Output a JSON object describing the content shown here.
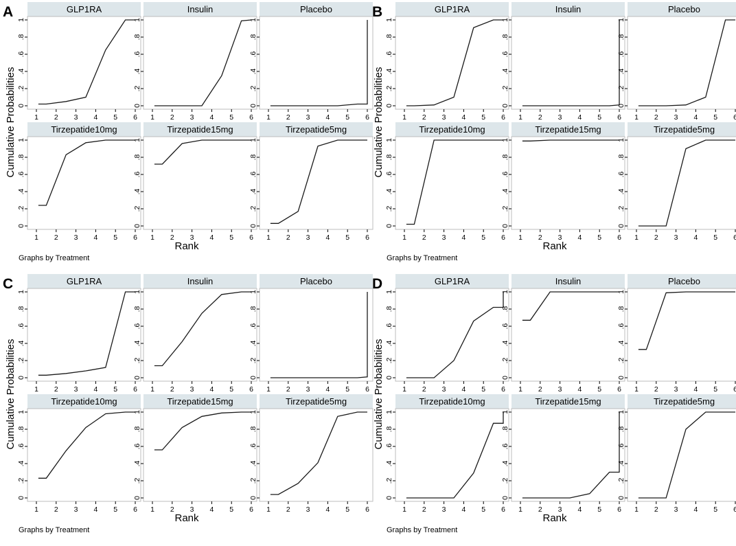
{
  "figure": {
    "x_axis_title": "Rank",
    "y_axis_title": "Cumulative Probabilities",
    "by_note": "Graphs by Treatment"
  },
  "chart_data": [
    {
      "label": "A",
      "type": "line",
      "xlabel": "Rank",
      "ylabel": "Cumulative Probabilities",
      "xlim": [
        1,
        6
      ],
      "ylim": [
        0,
        1
      ],
      "x_ticks": [
        "1",
        "2",
        "3",
        "4",
        "5",
        "6"
      ],
      "y_ticks": [
        "0",
        ".2",
        ".4",
        ".6",
        ".8",
        "1"
      ],
      "note": "Graphs by Treatment",
      "panels": [
        {
          "title": "GLP1RA",
          "x": [
            1.1,
            1.5,
            2.5,
            3.5,
            4.5,
            5.5,
            6
          ],
          "y": [
            0.02,
            0.02,
            0.05,
            0.1,
            0.65,
            1,
            1
          ]
        },
        {
          "title": "Insulin",
          "x": [
            1.1,
            1.5,
            2.5,
            3.5,
            4.5,
            5.5,
            6
          ],
          "y": [
            0,
            0,
            0,
            0,
            0.35,
            0.99,
            1
          ]
        },
        {
          "title": "Placebo",
          "x": [
            1.1,
            1.5,
            2.5,
            3.5,
            4.5,
            5.5,
            6,
            6
          ],
          "y": [
            0,
            0,
            0,
            0,
            0,
            0.02,
            0.02,
            1
          ]
        },
        {
          "title": "Tirzepatide10mg",
          "x": [
            1.1,
            1.5,
            2.5,
            3.5,
            4.5,
            5.5,
            6
          ],
          "y": [
            0.24,
            0.24,
            0.83,
            0.97,
            1,
            1,
            1
          ]
        },
        {
          "title": "Tirzepatide15mg",
          "x": [
            1.1,
            1.5,
            2.5,
            3.5,
            4.5,
            5.5,
            6
          ],
          "y": [
            0.72,
            0.72,
            0.96,
            1,
            1,
            1,
            1
          ]
        },
        {
          "title": "Tirzepatide5mg",
          "x": [
            1.1,
            1.5,
            2.5,
            3.5,
            4.5,
            5.5,
            6
          ],
          "y": [
            0.03,
            0.03,
            0.17,
            0.93,
            1,
            1,
            1
          ]
        }
      ]
    },
    {
      "label": "B",
      "type": "line",
      "xlabel": "Rank",
      "ylabel": "Cumulative Probabilities",
      "xlim": [
        1,
        6
      ],
      "ylim": [
        0,
        1
      ],
      "x_ticks": [
        "1",
        "2",
        "3",
        "4",
        "5",
        "6"
      ],
      "y_ticks": [
        "0",
        ".2",
        ".4",
        ".6",
        ".8",
        "1"
      ],
      "note": "Graphs by Treatment",
      "panels": [
        {
          "title": "GLP1RA",
          "x": [
            1.1,
            1.5,
            2.5,
            3.5,
            4.5,
            5.5,
            6
          ],
          "y": [
            0,
            0,
            0.01,
            0.1,
            0.91,
            1,
            1
          ]
        },
        {
          "title": "Insulin",
          "x": [
            1.1,
            1.5,
            2.5,
            3.5,
            4.5,
            5.5,
            6,
            6
          ],
          "y": [
            0,
            0,
            0,
            0,
            0,
            0,
            0.01,
            1
          ]
        },
        {
          "title": "Placebo",
          "x": [
            1.1,
            1.5,
            2.5,
            3.5,
            4.5,
            5.5,
            6
          ],
          "y": [
            0,
            0,
            0,
            0.01,
            0.1,
            1,
            1
          ]
        },
        {
          "title": "Tirzepatide10mg",
          "x": [
            1.1,
            1.5,
            2.5,
            3.5,
            4.5,
            5.5,
            6
          ],
          "y": [
            0.02,
            0.02,
            1,
            1,
            1,
            1,
            1
          ]
        },
        {
          "title": "Tirzepatide15mg",
          "x": [
            1.1,
            1.5,
            2.5,
            3.5,
            4.5,
            5.5,
            6
          ],
          "y": [
            0.99,
            0.99,
            1,
            1,
            1,
            1,
            1
          ]
        },
        {
          "title": "Tirzepatide5mg",
          "x": [
            1.1,
            1.5,
            2.5,
            3.5,
            4.5,
            5.5,
            6
          ],
          "y": [
            0,
            0,
            0,
            0.9,
            1,
            1,
            1
          ]
        }
      ]
    },
    {
      "label": "C",
      "type": "line",
      "xlabel": "Rank",
      "ylabel": "Cumulative Probabilities",
      "xlim": [
        1,
        6
      ],
      "ylim": [
        0,
        1
      ],
      "x_ticks": [
        "1",
        "2",
        "3",
        "4",
        "5",
        "6"
      ],
      "y_ticks": [
        "0",
        ".2",
        ".4",
        ".6",
        ".8",
        "1"
      ],
      "note": "Graphs by Treatment",
      "panels": [
        {
          "title": "GLP1RA",
          "x": [
            1.1,
            1.5,
            2.5,
            3.5,
            4.5,
            5.5,
            6
          ],
          "y": [
            0.03,
            0.03,
            0.05,
            0.08,
            0.12,
            1,
            1
          ]
        },
        {
          "title": "Insulin",
          "x": [
            1.1,
            1.5,
            2.5,
            3.5,
            4.5,
            5.5,
            6
          ],
          "y": [
            0.14,
            0.14,
            0.42,
            0.75,
            0.97,
            1,
            1
          ]
        },
        {
          "title": "Placebo",
          "x": [
            1.1,
            1.5,
            2.5,
            3.5,
            4.5,
            5.5,
            6,
            6
          ],
          "y": [
            0,
            0,
            0,
            0,
            0,
            0,
            0.01,
            1
          ]
        },
        {
          "title": "Tirzepatide10mg",
          "x": [
            1.1,
            1.5,
            2.5,
            3.5,
            4.5,
            5.5,
            6
          ],
          "y": [
            0.23,
            0.23,
            0.55,
            0.82,
            0.98,
            1,
            1
          ]
        },
        {
          "title": "Tirzepatide15mg",
          "x": [
            1.1,
            1.5,
            2.5,
            3.5,
            4.5,
            5.5,
            6
          ],
          "y": [
            0.56,
            0.56,
            0.82,
            0.95,
            0.99,
            1,
            1
          ]
        },
        {
          "title": "Tirzepatide5mg",
          "x": [
            1.1,
            1.5,
            2.5,
            3.5,
            4.5,
            5.5,
            6
          ],
          "y": [
            0.04,
            0.04,
            0.17,
            0.41,
            0.95,
            1,
            1
          ]
        }
      ]
    },
    {
      "label": "D",
      "type": "line",
      "xlabel": "Rank",
      "ylabel": "Cumulative Probabilities",
      "xlim": [
        1,
        6
      ],
      "ylim": [
        0,
        1
      ],
      "x_ticks": [
        "1",
        "2",
        "3",
        "4",
        "5",
        "6"
      ],
      "y_ticks": [
        "0",
        ".2",
        ".4",
        ".6",
        ".8",
        "1"
      ],
      "note": "Graphs by Treatment",
      "panels": [
        {
          "title": "GLP1RA",
          "x": [
            1.1,
            1.5,
            2.5,
            3.5,
            4.5,
            5.5,
            6,
            6
          ],
          "y": [
            0,
            0,
            0,
            0.2,
            0.66,
            0.82,
            0.82,
            1
          ]
        },
        {
          "title": "Insulin",
          "x": [
            1.1,
            1.5,
            2.5,
            3.5,
            4.5,
            5.5,
            6
          ],
          "y": [
            0.67,
            0.67,
            1,
            1,
            1,
            1,
            1
          ]
        },
        {
          "title": "Placebo",
          "x": [
            1.1,
            1.5,
            2.5,
            3.5,
            4.5,
            5.5,
            6
          ],
          "y": [
            0.33,
            0.33,
            0.99,
            1,
            1,
            1,
            1
          ]
        },
        {
          "title": "Tirzepatide10mg",
          "x": [
            1.1,
            1.5,
            2.5,
            3.5,
            4.5,
            5.5,
            6,
            6
          ],
          "y": [
            0,
            0,
            0,
            0,
            0.29,
            0.87,
            0.87,
            1
          ]
        },
        {
          "title": "Tirzepatide15mg",
          "x": [
            1.1,
            1.5,
            2.5,
            3.5,
            4.5,
            5.5,
            6,
            6
          ],
          "y": [
            0,
            0,
            0,
            0,
            0.05,
            0.3,
            0.3,
            1
          ]
        },
        {
          "title": "Tirzepatide5mg",
          "x": [
            1.1,
            1.5,
            2.5,
            3.5,
            4.5,
            5.5,
            6
          ],
          "y": [
            0,
            0,
            0,
            0.8,
            1,
            1,
            1
          ]
        }
      ]
    }
  ]
}
